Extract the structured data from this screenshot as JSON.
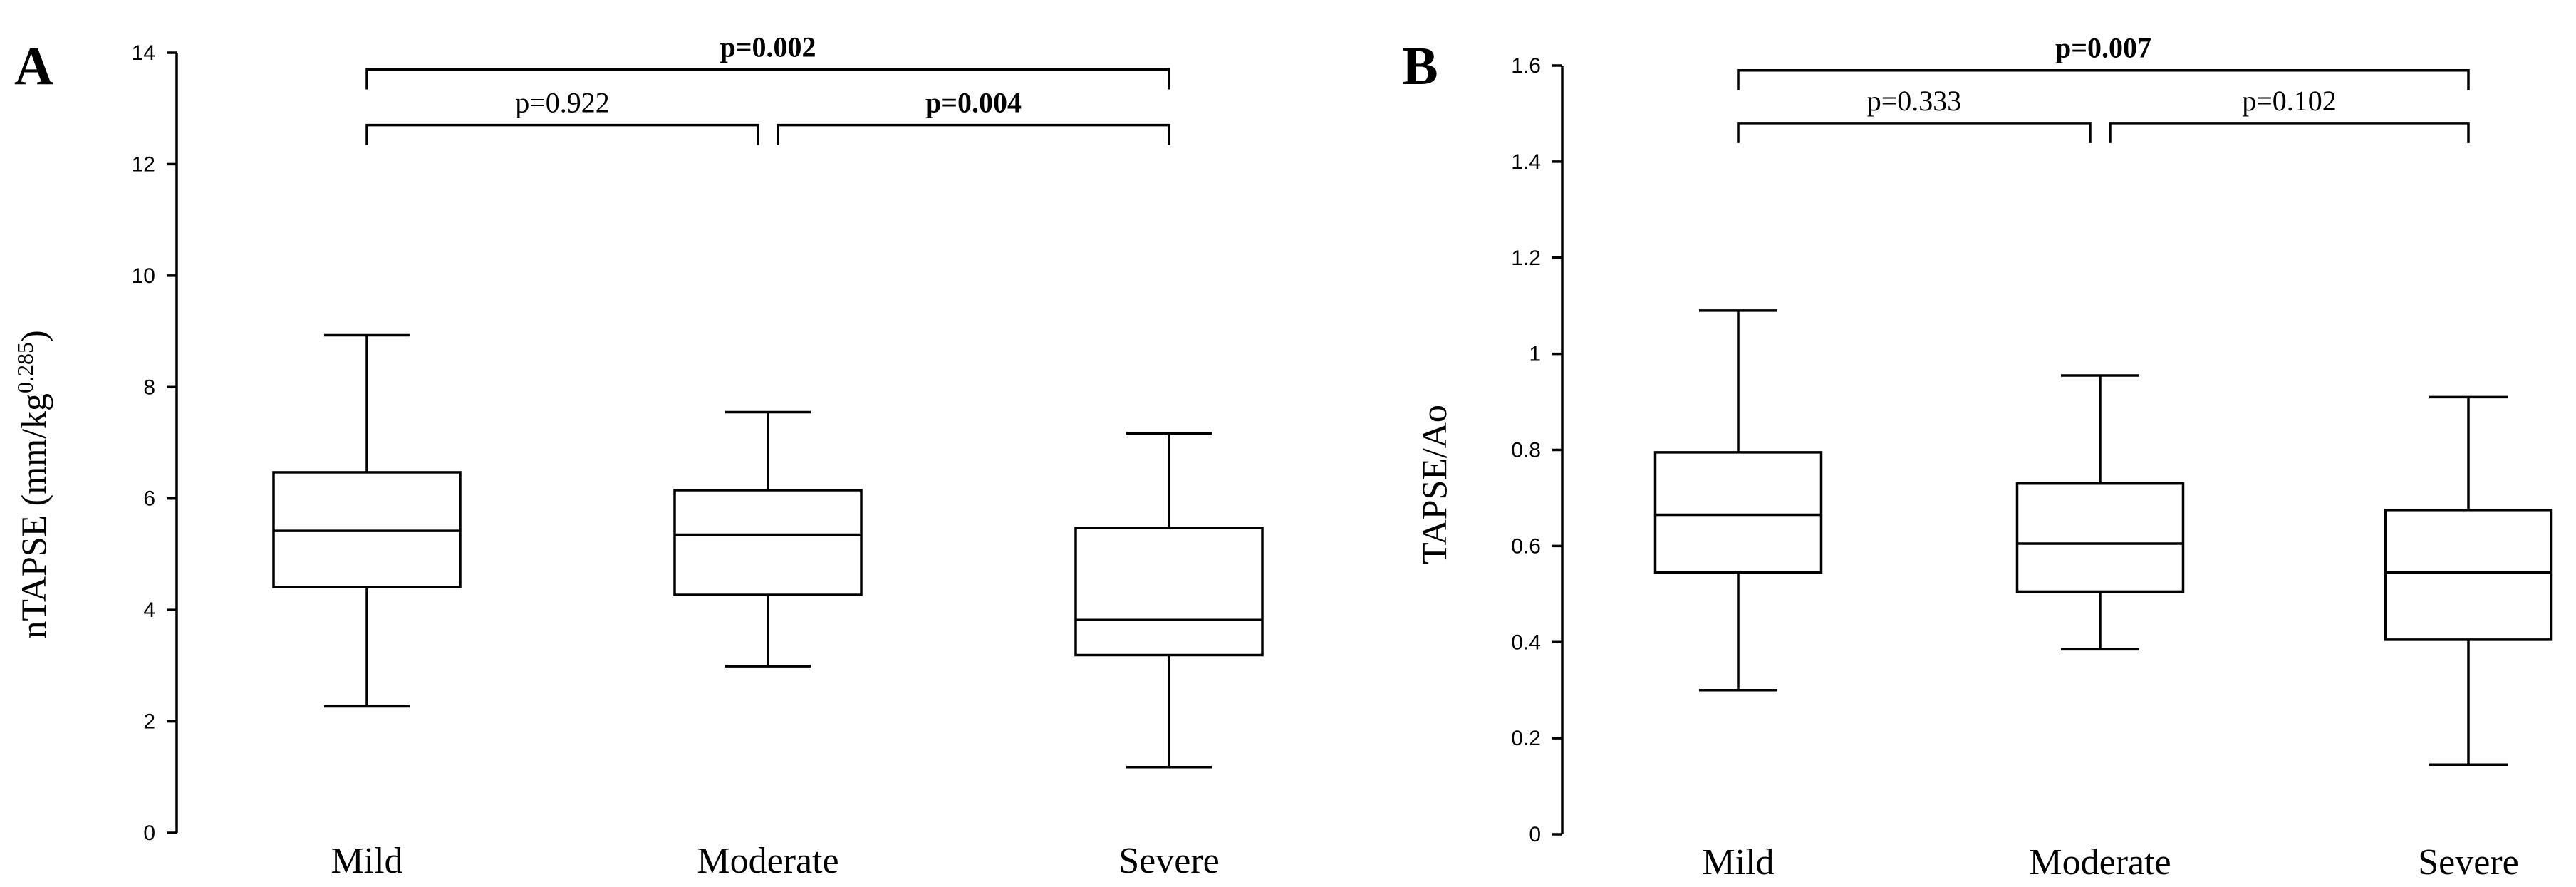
{
  "chart_data": [
    {
      "type": "box",
      "panel": "A",
      "ylabel_main": "nTAPSE (mm/kg",
      "ylabel_sup": "0.285",
      "ylabel_end": ")",
      "ylim": [
        0,
        14
      ],
      "yticks": [
        0,
        2,
        4,
        6,
        8,
        10,
        12,
        14
      ],
      "ytick_labels": [
        "0",
        "2",
        "4",
        "6",
        "8",
        "10",
        "12",
        "14"
      ],
      "categories": [
        "Mild",
        "Moderate",
        "Severe"
      ],
      "boxes": [
        {
          "min": 2.27,
          "q1": 4.41,
          "median": 5.42,
          "q3": 6.47,
          "max": 8.93
        },
        {
          "min": 2.99,
          "q1": 4.27,
          "median": 5.35,
          "q3": 6.15,
          "max": 7.55
        },
        {
          "min": 1.18,
          "q1": 3.19,
          "median": 3.82,
          "q3": 5.47,
          "max": 7.17
        }
      ],
      "comparisons": [
        {
          "from": 0,
          "to": 2,
          "label": "p=0.002",
          "bold": true,
          "level": 13.7
        },
        {
          "from": 0,
          "to": 1,
          "label": "p=0.922",
          "bold": false,
          "level": 12.7
        },
        {
          "from": 1,
          "to": 2,
          "label": "p=0.004",
          "bold": true,
          "level": 12.7
        }
      ]
    },
    {
      "type": "box",
      "panel": "B",
      "ylabel_main": "TAPSE/Ao",
      "ylabel_sup": "",
      "ylabel_end": "",
      "ylim": [
        0,
        1.6
      ],
      "yticks": [
        0,
        0.2,
        0.4,
        0.6,
        0.8,
        1.0,
        1.2,
        1.4,
        1.6
      ],
      "ytick_labels": [
        "0",
        "0.2",
        "0.4",
        "0.6",
        "0.8",
        "1",
        "1.2",
        "1.4",
        "1.6"
      ],
      "categories": [
        "Mild",
        "Moderate",
        "Severe"
      ],
      "boxes": [
        {
          "min": 0.3,
          "q1": 0.545,
          "median": 0.665,
          "q3": 0.795,
          "max": 1.09
        },
        {
          "min": 0.385,
          "q1": 0.505,
          "median": 0.605,
          "q3": 0.73,
          "max": 0.955
        },
        {
          "min": 0.145,
          "q1": 0.405,
          "median": 0.545,
          "q3": 0.675,
          "max": 0.91
        }
      ],
      "comparisons": [
        {
          "from": 0,
          "to": 2,
          "label": "p=0.007",
          "bold": true,
          "level": 1.59
        },
        {
          "from": 0,
          "to": 1,
          "label": "p=0.333",
          "bold": false,
          "level": 1.48
        },
        {
          "from": 1,
          "to": 2,
          "label": "p=0.102",
          "bold": false,
          "level": 1.48
        }
      ]
    }
  ]
}
